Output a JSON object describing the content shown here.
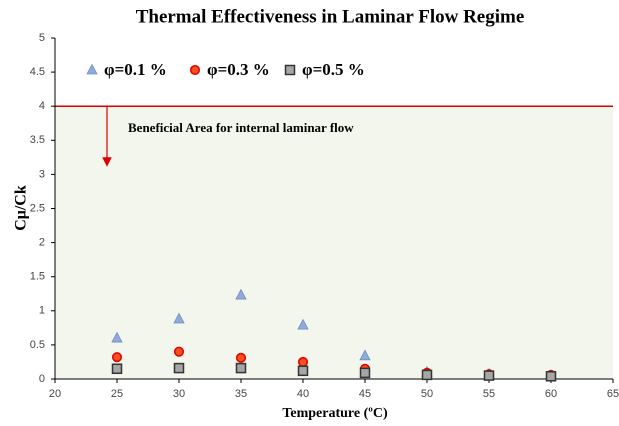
{
  "chart_data": {
    "type": "scatter",
    "title": "Thermal Effectiveness in Laminar Flow Regime",
    "x_label": "Temperature (ºC)",
    "y_label": "Cμ/Ck",
    "annotation": "Beneficial Area for internal laminar flow",
    "reference_line": {
      "value": 4,
      "color": "#e00000"
    },
    "x": [
      25,
      30,
      35,
      40,
      45,
      50,
      55,
      60
    ],
    "series": [
      {
        "name": "φ=0.1 %",
        "color": "#8faadc",
        "marker": "triangle",
        "values": [
          0.6,
          0.88,
          1.23,
          0.79,
          0.34,
          0.1,
          0.07,
          0.05
        ]
      },
      {
        "name": "φ=0.3 %",
        "color": "#f4511e",
        "marker": "circle",
        "values": [
          0.32,
          0.4,
          0.31,
          0.25,
          0.15,
          0.09,
          0.07,
          0.06
        ]
      },
      {
        "name": "φ=0.5 %",
        "color": "#a6a6a6",
        "marker": "square",
        "values": [
          0.15,
          0.16,
          0.16,
          0.12,
          0.09,
          0.06,
          0.05,
          0.04
        ]
      }
    ],
    "xlim": [
      20,
      65
    ],
    "xticks": [
      20,
      25,
      30,
      35,
      40,
      45,
      50,
      55,
      60,
      65
    ],
    "ylim": [
      0,
      5
    ],
    "yticks": [
      0,
      0.5,
      1,
      1.5,
      2,
      2.5,
      3,
      3.5,
      4,
      4.5,
      5
    ],
    "legend": "top-left"
  }
}
